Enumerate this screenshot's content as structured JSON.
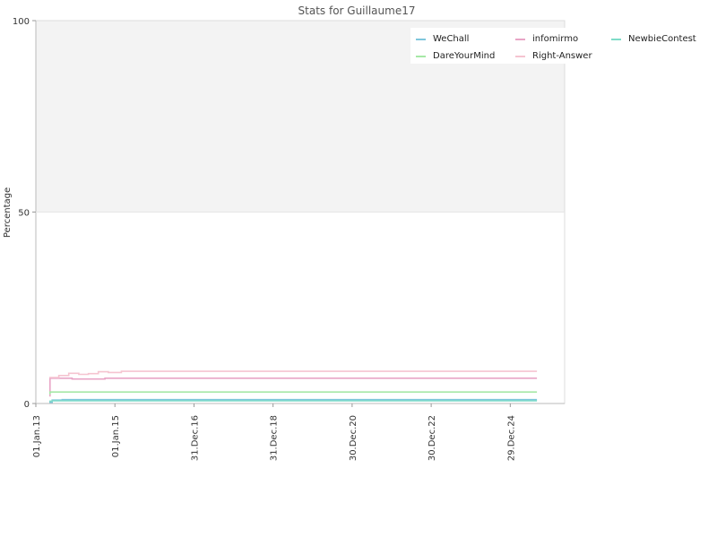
{
  "chart_data": {
    "type": "line",
    "title": "Stats for Guillaume17",
    "xlabel": "",
    "ylabel": "Percentage",
    "ylim": [
      0,
      100
    ],
    "yticks": [
      0,
      50,
      100
    ],
    "xlim": [
      "2013-01-01",
      "2026-05-15"
    ],
    "xtick_labels": [
      "01.Jan.13",
      "01.Jan.15",
      "31.Dec.16",
      "31.Dec.18",
      "30.Dec.20",
      "30.Dec.22",
      "29.Dec.24"
    ],
    "xtick_dates": [
      "2013-01-01",
      "2015-01-01",
      "2016-12-31",
      "2018-12-31",
      "2020-12-30",
      "2022-12-30",
      "2024-12-29"
    ],
    "background_bands": [
      {
        "from": 50,
        "to": 100,
        "color": "#f3f3f3"
      }
    ],
    "grid": false,
    "legend": {
      "placement": "top-right",
      "columns": 3
    },
    "series": [
      {
        "name": "WeChall",
        "color": "#7fc6dc",
        "points": [
          [
            "2013-05-05",
            0.3
          ],
          [
            "2013-06-01",
            0.9
          ],
          [
            "2013-09-01",
            1.0
          ],
          [
            "2025-09-01",
            1.0
          ]
        ]
      },
      {
        "name": "infomirmo",
        "color": "#e8a5c6",
        "points": [
          [
            "2013-05-05",
            2.0
          ],
          [
            "2013-05-12",
            6.6
          ],
          [
            "2013-11-01",
            6.6
          ],
          [
            "2013-12-01",
            6.4
          ],
          [
            "2014-09-01",
            6.4
          ],
          [
            "2014-10-01",
            6.6
          ],
          [
            "2025-09-01",
            6.6
          ]
        ]
      },
      {
        "name": "NewbieContest",
        "color": "#7fdcc8",
        "points": [
          [
            "2013-05-05",
            0.6
          ],
          [
            "2013-06-01",
            0.7
          ],
          [
            "2025-09-01",
            0.7
          ]
        ]
      },
      {
        "name": "DareYourMind",
        "color": "#a6e8a6",
        "points": [
          [
            "2013-05-05",
            2.6
          ],
          [
            "2013-05-12",
            3.0
          ],
          [
            "2025-09-01",
            3.0
          ]
        ]
      },
      {
        "name": "Right-Answer",
        "color": "#f5c4d0",
        "points": [
          [
            "2013-05-05",
            6.8
          ],
          [
            "2013-08-01",
            7.3
          ],
          [
            "2013-11-01",
            7.9
          ],
          [
            "2014-02-01",
            7.6
          ],
          [
            "2014-05-01",
            7.8
          ],
          [
            "2014-08-01",
            8.3
          ],
          [
            "2014-11-01",
            8.1
          ],
          [
            "2015-02-01",
            8.1
          ],
          [
            "2015-03-01",
            8.4
          ],
          [
            "2025-09-01",
            8.4
          ]
        ]
      }
    ]
  }
}
